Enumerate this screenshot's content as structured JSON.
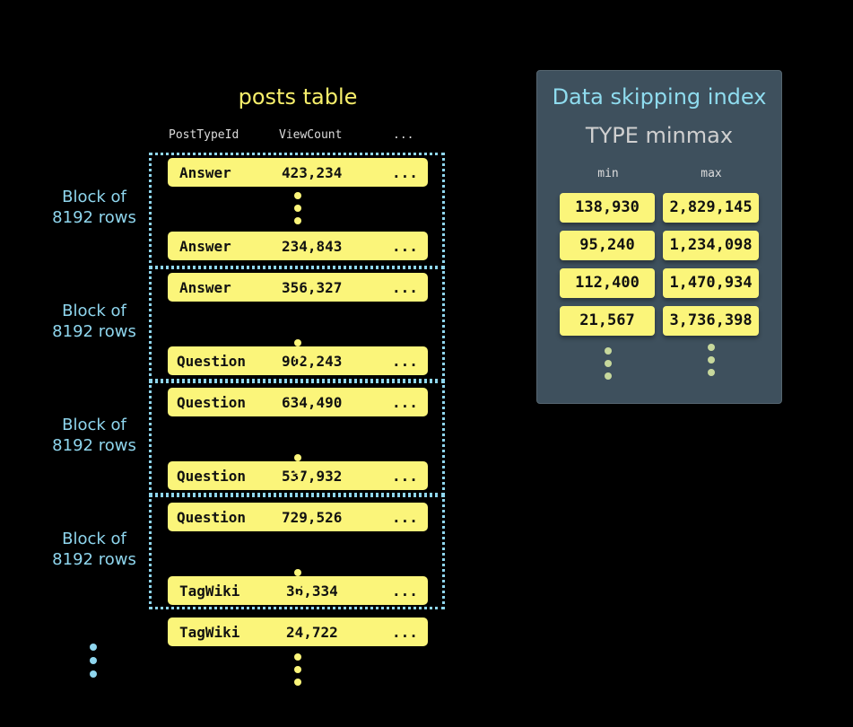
{
  "posts_table": {
    "title": "posts table",
    "columns": [
      "PostTypeId",
      "ViewCount",
      "..."
    ],
    "block_label_line1": "Block of",
    "block_label_line2": "8192 rows",
    "rows": [
      {
        "type": "Answer",
        "views": "423,234",
        "more": "..."
      },
      {
        "type": "Answer",
        "views": "234,843",
        "more": "..."
      },
      {
        "type": "Answer",
        "views": "356,327",
        "more": "..."
      },
      {
        "type": "Question",
        "views": "902,243",
        "more": "..."
      },
      {
        "type": "Question",
        "views": "634,490",
        "more": "..."
      },
      {
        "type": "Question",
        "views": "537,932",
        "more": "..."
      },
      {
        "type": "Question",
        "views": "729,526",
        "more": "..."
      },
      {
        "type": "TagWiki",
        "views": "36,334",
        "more": "..."
      },
      {
        "type": "TagWiki",
        "views": "24,722",
        "more": "..."
      }
    ]
  },
  "index_panel": {
    "title": "Data skipping index",
    "subtitle": "TYPE minmax",
    "min_label": "min",
    "max_label": "max",
    "entries": [
      {
        "min": "138,930",
        "max": "2,829,145"
      },
      {
        "min": "95,240",
        "max": "1,234,098"
      },
      {
        "min": "112,400",
        "max": "1,470,934"
      },
      {
        "min": "21,567",
        "max": "3,736,398"
      }
    ]
  },
  "colors": {
    "row": "#fbf57a",
    "block_border": "#8fd6ee",
    "panel": "#3e505d",
    "title": "#f7ef6b"
  }
}
